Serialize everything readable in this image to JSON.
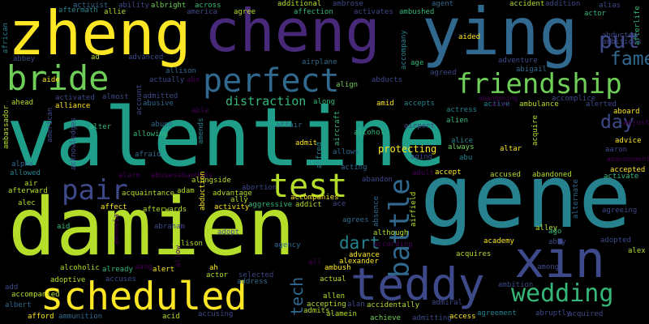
{
  "cloud": {
    "palette": [
      "#fde725",
      "#b5de2b",
      "#6ece58",
      "#35b779",
      "#1f9e89",
      "#26828e",
      "#31688e",
      "#3e4989",
      "#482878",
      "#440154"
    ],
    "words": {
      "valentine": "valentine",
      "damien": "damien",
      "gene": "gene",
      "zheng": "zheng",
      "cheng": "cheng",
      "ying": "ying",
      "xin": "xin",
      "scheduled": "scheduled",
      "teddy": "teddy",
      "bride": "bride",
      "perfect": "perfect",
      "friendship": "friendship",
      "test": "test",
      "pair": "pair",
      "wedding": "wedding",
      "battle": "battle",
      "put": "put",
      "fame": "fame",
      "day": "day",
      "dart": "dart",
      "tech": "tech",
      "distraction": "distraction",
      "protecting": "protecting",
      "african": "african",
      "aftermath": "aftermath",
      "activist": "activist",
      "ability": "ability",
      "albright": "albright",
      "across": "across",
      "additional": "additional",
      "affection": "affection",
      "agent": "agent",
      "accident": "accident",
      "addition": "addition",
      "alias": "alias",
      "afterlife": "afterlife",
      "allie": "allie",
      "america": "america",
      "agree": "agree",
      "ambrose": "ambrose",
      "activates": "activates",
      "ambushed": "ambushed",
      "accompany": "accompany",
      "aided": "aided",
      "actor1": "actor",
      "ad": "ad",
      "advanced": "advanced",
      "allison1": "allison",
      "airplane": "airplane",
      "age": "age",
      "adventure": "adventure",
      "abducted": "abducted",
      "ambitious": "ambitious",
      "abbey": "abbey",
      "actually": "actually",
      "abe": "abe",
      "align": "align",
      "abducts": "abducts",
      "agreed": "agreed",
      "abigail": "abigail",
      "aide": "aide",
      "account": "account",
      "admitted": "admitted",
      "abusive": "abusive",
      "aircraft": "aircraft",
      "abandoning": "abandoning",
      "accomplice": "accomplice",
      "ahead": "ahead",
      "activated": "activated",
      "alliance": "alliance",
      "almost": "almost",
      "along": "along",
      "amid": "amid",
      "accepts": "accepts",
      "actress": "actress",
      "active": "active",
      "also": "also",
      "ambulance": "ambulance",
      "alerted": "alerted",
      "aboard": "aboard",
      "ambassador": "ambassador",
      "american": "american",
      "able": "able",
      "alien": "alien",
      "adjust": "adjust",
      "advice": "advice",
      "alter": "alter",
      "acknowledges": "acknowledges",
      "abuse": "abuse",
      "affair": "affair",
      "alcohol": "alcohol",
      "airport": "airport",
      "alice": "alice",
      "always": "always",
      "acquire": "acquire",
      "aaron": "aaron",
      "admit": "admit",
      "allows": "allows",
      "aging": "aging",
      "altar": "altar",
      "abu": "abu",
      "afraid": "afraid",
      "allowing": "allowing",
      "amends": "amends",
      "alfred": "alfred",
      "accepted": "accepted",
      "alpha": "alpha",
      "abandonment": "abandonment",
      "allowed": "allowed",
      "alarm": "alarm",
      "abusesabandons": "abusesabandons",
      "abduction": "abduction",
      "acting": "acting",
      "adult": "adult",
      "accept": "accept",
      "accused": "accused",
      "abandoned": "abandoned",
      "activate": "activate",
      "air": "air",
      "alongside": "alongside",
      "abortion": "abortion",
      "accompanies": "accompanies",
      "abandon": "abandon",
      "afterward": "afterward",
      "acquaintance": "acquaintance",
      "adam": "adam",
      "advantage": "advantage",
      "ally": "ally",
      "alternate": "alternate",
      "agreeing": "agreeing",
      "alec": "alec",
      "affect": "affect",
      "afterwards": "afterwards",
      "activity": "activity",
      "aggressive": "aggressive",
      "addict": "addict",
      "ace": "ace",
      "agrees": "agrees",
      "airfield": "airfield",
      "absence": "absence",
      "alley": "alley",
      "ago": "ago",
      "aid": "aid",
      "although": "although",
      "abby": "abby",
      "adopted": "adopted",
      "alex": "alex",
      "abraham": "abraham",
      "allison2": "allison",
      "adopt": "adopt",
      "agency": "agency",
      "according": "according",
      "advance": "advance",
      "alexander": "alexander",
      "academy": "academy",
      "acquires": "acquires",
      "among": "among",
      "amnesia": "amnesia",
      "alcoholic": "alcoholic",
      "already": "already",
      "adoptive": "adoptive",
      "accompanied": "accompanied",
      "aang": "aang",
      "alert": "alert",
      "allow": "allow",
      "ah": "ah",
      "accuses": "accuses",
      "actor2": "actor",
      "ambush": "ambush",
      "all": "all",
      "selected": "selected",
      "actual": "actual",
      "add": "add",
      "ambition": "ambition",
      "alan": "alan",
      "address": "address",
      "albert": "albert",
      "afford": "afford",
      "ammunition": "ammunition",
      "acid": "acid",
      "accusing": "accusing",
      "admits": "admits",
      "alamein": "alamein",
      "accepting": "accepting",
      "achieve": "achieve",
      "allen": "allen",
      "accidentally": "accidentally",
      "admiral": "admiral",
      "admitting": "admitting",
      "access": "access",
      "agreement": "agreement",
      "abruptly": "abruptly",
      "acquired": "acquired"
    }
  }
}
